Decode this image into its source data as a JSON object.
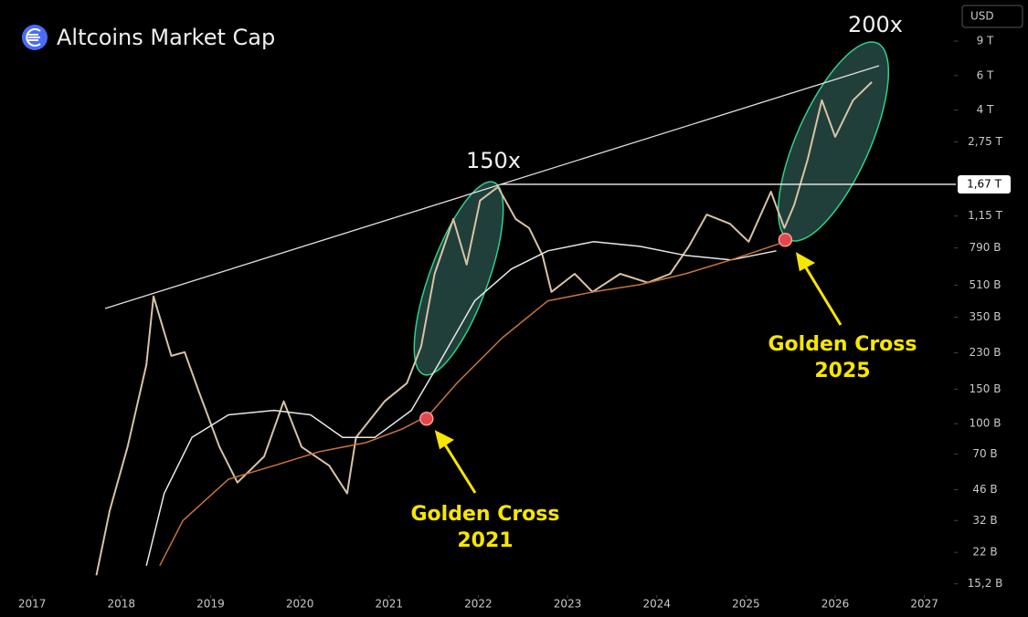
{
  "chart_data": {
    "type": "line",
    "title": "Altcoins Market Cap",
    "currency": "USD",
    "log_scale": true,
    "xlim": [
      2016.64,
      2027.29
    ],
    "xticks": [
      2017,
      2018,
      2019,
      2020,
      2021,
      2022,
      2023,
      2024,
      2025,
      2026,
      2027
    ],
    "ylim": [
      13.6,
      14600
    ],
    "yticks": [
      {
        "value": 15.2,
        "label": "15,2 B"
      },
      {
        "value": 22,
        "label": "22 B"
      },
      {
        "value": 32,
        "label": "32 B"
      },
      {
        "value": 46,
        "label": "46 B"
      },
      {
        "value": 70,
        "label": "70 B"
      },
      {
        "value": 100,
        "label": "100 B"
      },
      {
        "value": 150,
        "label": "150 B"
      },
      {
        "value": 230,
        "label": "230 B"
      },
      {
        "value": 350,
        "label": "350 B"
      },
      {
        "value": 510,
        "label": "510 B"
      },
      {
        "value": 790,
        "label": "790 B"
      },
      {
        "value": 1150,
        "label": "1,15 T"
      },
      {
        "value": 2750,
        "label": "2,75 T"
      },
      {
        "value": 4000,
        "label": "4 T"
      },
      {
        "value": 6000,
        "label": "6 T"
      },
      {
        "value": 9000,
        "label": "9 T"
      }
    ],
    "price_line": {
      "value": 1670,
      "label": "1,67 T"
    },
    "series": [
      {
        "color": "#d8c3a5",
        "x": [
          2017.72,
          2017.87,
          2018.07,
          2018.28,
          2018.36,
          2018.56,
          2018.71,
          2018.87,
          2019.1,
          2019.3,
          2019.6,
          2019.82,
          2020.02,
          2020.33,
          2020.53,
          2020.63,
          2020.95,
          2021.2,
          2021.36,
          2021.51,
          2021.72,
          2021.87,
          2022.02,
          2022.22,
          2022.42,
          2022.57,
          2022.72,
          2022.82,
          2023.08,
          2023.28,
          2023.59,
          2023.9,
          2024.15,
          2024.36,
          2024.56,
          2024.82,
          2025.03,
          2025.28,
          2025.43,
          2025.54,
          2025.69,
          2025.85,
          2026.0,
          2026.2,
          2026.41
        ],
        "values": [
          16.8,
          36,
          76,
          200,
          447,
          222,
          232,
          145,
          76,
          50,
          68,
          130,
          76,
          61,
          44,
          85,
          130,
          161,
          248,
          583,
          1110,
          650,
          1380,
          1620,
          1110,
          998,
          724,
          471,
          583,
          471,
          583,
          525,
          583,
          805,
          1170,
          1050,
          850,
          1530,
          998,
          1310,
          2230,
          4490,
          2920,
          4490,
          5560
        ]
      },
      {
        "color": "#e8e8e8",
        "x": [
          2018.28,
          2018.48,
          2018.79,
          2019.2,
          2019.71,
          2020.12,
          2020.48,
          2020.84,
          2021.25,
          2021.55,
          2021.96,
          2022.37,
          2022.78,
          2023.29,
          2023.81,
          2024.32,
          2024.83,
          2025.34
        ],
        "values": [
          18.8,
          44,
          85,
          111,
          117,
          111,
          85,
          85,
          117,
          200,
          424,
          616,
          764,
          850,
          805,
          724,
          686,
          764
        ]
      },
      {
        "color": "#c8743a",
        "x": [
          2018.43,
          2018.69,
          2019.2,
          2019.71,
          2020.22,
          2020.74,
          2021.15,
          2021.45,
          2021.76,
          2022.27,
          2022.78,
          2023.29,
          2023.81,
          2024.32,
          2024.83,
          2025.44
        ],
        "values": [
          18.8,
          32,
          52,
          61,
          72,
          80,
          94,
          111,
          161,
          275,
          424,
          471,
          513,
          583,
          686,
          850
        ]
      }
    ],
    "golden_crosses": [
      {
        "x": 2021.42,
        "y": 106,
        "label": [
          "Golden Cross",
          "2021"
        ]
      },
      {
        "x": 2025.44,
        "y": 869,
        "label": [
          "Golden Cross",
          "2025"
        ]
      }
    ],
    "annotations": [
      "150x",
      "200x"
    ]
  }
}
